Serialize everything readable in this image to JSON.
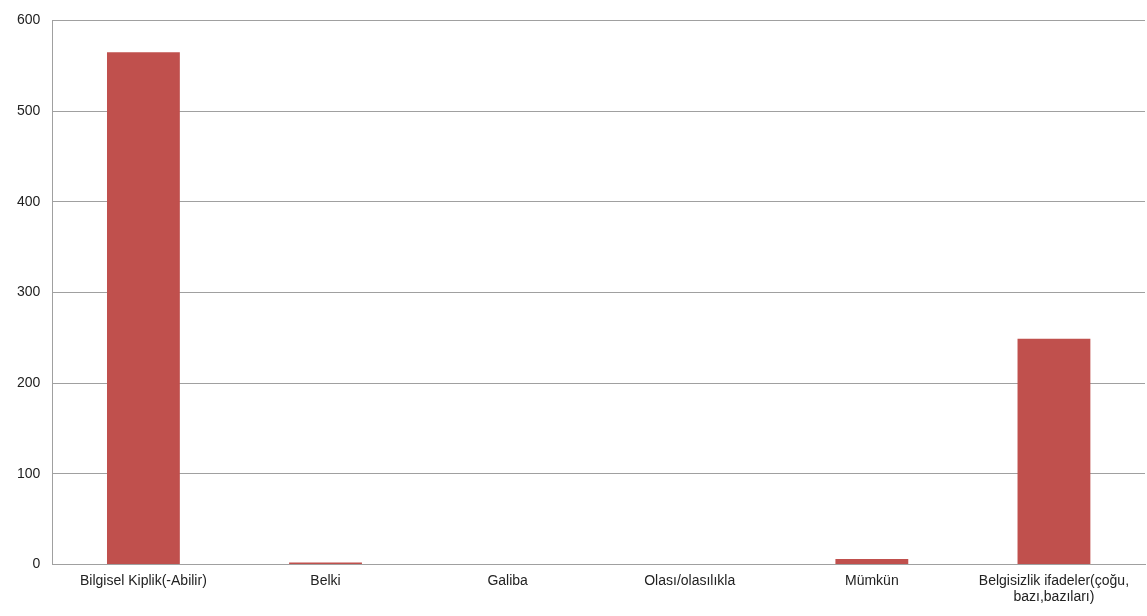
{
  "chart_data": {
    "type": "bar",
    "categories": [
      "Bilgisel Kiplik(-Abilir)",
      "Belki",
      "Galiba",
      "Olası/olasılıkla",
      "Mümkün",
      "Belgisizlik ifadeler(çoğu, bazı,bazıları)"
    ],
    "values": [
      565,
      2,
      0,
      0,
      6,
      249
    ],
    "color": "#c0504d",
    "ylim": [
      0,
      600
    ],
    "yticks": [
      0,
      100,
      200,
      300,
      400,
      500,
      600
    ],
    "grid": "y",
    "legend": false
  }
}
